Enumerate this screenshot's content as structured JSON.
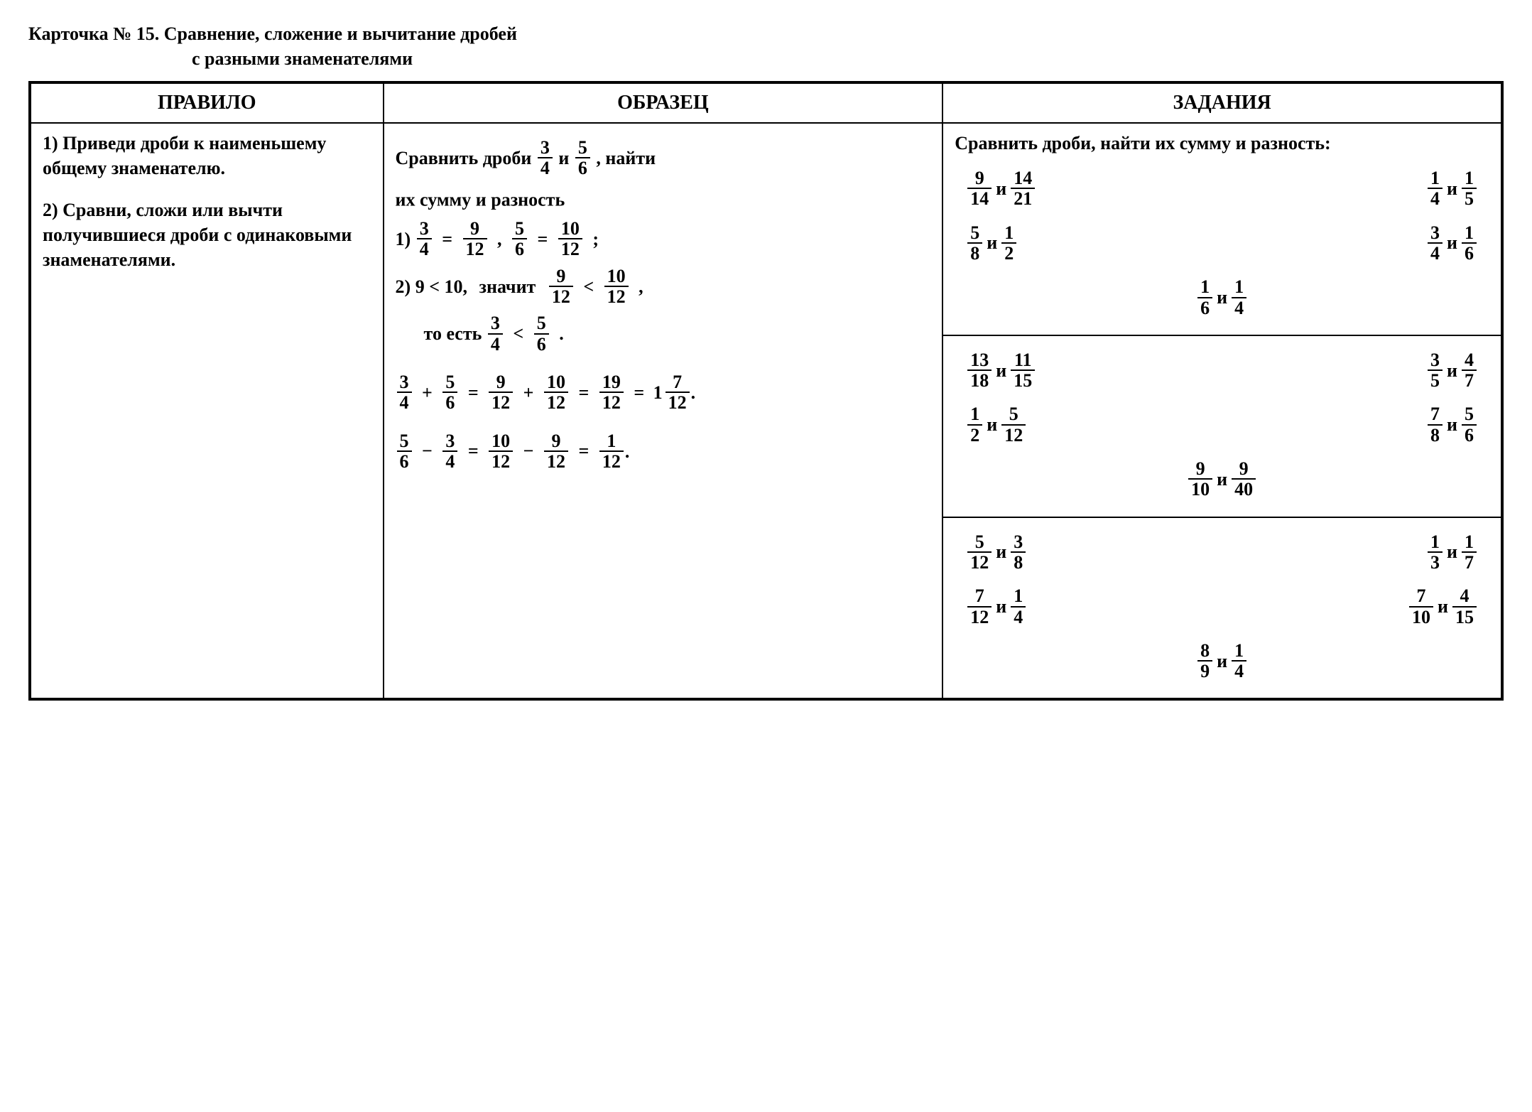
{
  "title": {
    "line1": "Карточка № 15. Сравнение, сложение и вычитание дробей",
    "line2": "с разными знаменателями"
  },
  "headers": {
    "rule": "ПРАВИЛО",
    "example": "ОБРАЗЕЦ",
    "tasks": "ЗАДАНИЯ"
  },
  "rule": {
    "item1": "1) Приведи дроби к наименьшему общему знаменателю.",
    "item2": "2) Сравни, сложи или вычти получившиеся дроби с одинаковыми знаменателями."
  },
  "example": {
    "intro_a": "Сравнить дроби",
    "intro_conj": "и",
    "intro_b": ", найти",
    "intro_c": "их сумму и разность",
    "f1": {
      "n": "3",
      "d": "4"
    },
    "f2": {
      "n": "5",
      "d": "6"
    },
    "step1_label": "1)",
    "eq": "=",
    "f1c": {
      "n": "9",
      "d": "12"
    },
    "comma": ",",
    "f2c": {
      "n": "10",
      "d": "12"
    },
    "semicolon": ";",
    "step2_label": "2)",
    "cmp_nums": "9 < 10,",
    "znachit": "значит",
    "lt": "<",
    "to_est": "то есть",
    "dot": ".",
    "plus": "+",
    "sum": {
      "n": "19",
      "d": "12"
    },
    "sum_mixed_int": "1",
    "sum_mixed_frac": {
      "n": "7",
      "d": "12"
    },
    "minus": "−",
    "diff": {
      "n": "1",
      "d": "12"
    }
  },
  "tasks": {
    "heading": "Сравнить дроби, найти их сумму и разность:",
    "conj": "и",
    "groups": [
      {
        "rows": [
          [
            {
              "a": {
                "n": "9",
                "d": "14"
              },
              "b": {
                "n": "14",
                "d": "21"
              }
            },
            {
              "a": {
                "n": "1",
                "d": "4"
              },
              "b": {
                "n": "1",
                "d": "5"
              }
            }
          ],
          [
            {
              "a": {
                "n": "5",
                "d": "8"
              },
              "b": {
                "n": "1",
                "d": "2"
              }
            },
            {
              "a": {
                "n": "3",
                "d": "4"
              },
              "b": {
                "n": "1",
                "d": "6"
              }
            }
          ]
        ],
        "center": {
          "a": {
            "n": "1",
            "d": "6"
          },
          "b": {
            "n": "1",
            "d": "4"
          }
        }
      },
      {
        "rows": [
          [
            {
              "a": {
                "n": "13",
                "d": "18"
              },
              "b": {
                "n": "11",
                "d": "15"
              }
            },
            {
              "a": {
                "n": "3",
                "d": "5"
              },
              "b": {
                "n": "4",
                "d": "7"
              }
            }
          ],
          [
            {
              "a": {
                "n": "1",
                "d": "2"
              },
              "b": {
                "n": "5",
                "d": "12"
              }
            },
            {
              "a": {
                "n": "7",
                "d": "8"
              },
              "b": {
                "n": "5",
                "d": "6"
              }
            }
          ]
        ],
        "center": {
          "a": {
            "n": "9",
            "d": "10"
          },
          "b": {
            "n": "9",
            "d": "40"
          }
        }
      },
      {
        "rows": [
          [
            {
              "a": {
                "n": "5",
                "d": "12"
              },
              "b": {
                "n": "3",
                "d": "8"
              }
            },
            {
              "a": {
                "n": "1",
                "d": "3"
              },
              "b": {
                "n": "1",
                "d": "7"
              }
            }
          ],
          [
            {
              "a": {
                "n": "7",
                "d": "12"
              },
              "b": {
                "n": "1",
                "d": "4"
              }
            },
            {
              "a": {
                "n": "7",
                "d": "10"
              },
              "b": {
                "n": "4",
                "d": "15"
              }
            }
          ]
        ],
        "center": {
          "a": {
            "n": "8",
            "d": "9"
          },
          "b": {
            "n": "1",
            "d": "4"
          }
        }
      }
    ]
  }
}
